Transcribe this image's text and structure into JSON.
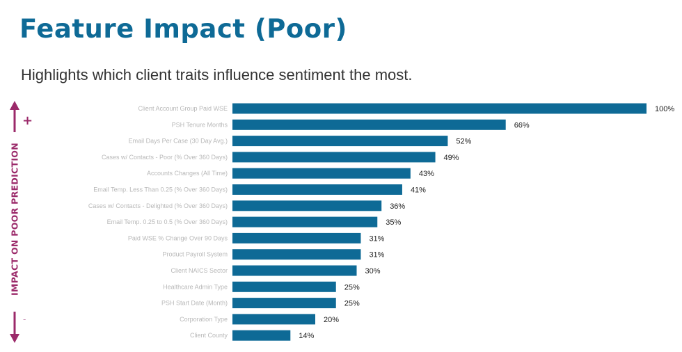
{
  "header": {
    "title": "Feature Impact (Poor)",
    "subtitle": "Highlights which client traits influence sentiment the most."
  },
  "axis_indicator": {
    "label": "IMPACT ON POOR PREDICTION",
    "plus": "+",
    "minus": "-",
    "color": "#9b2a6a"
  },
  "colors": {
    "bar": "#0e6a96",
    "title": "#0e6a96"
  },
  "chart_data": {
    "type": "bar",
    "orientation": "horizontal",
    "categories": [
      "Client Account Group Paid WSE",
      "PSH Tenure Months",
      "Email Days Per Case (30 Day Avg.)",
      "Cases w/ Contacts - Poor (% Over 360 Days)",
      "Accounts Changes (All Time)",
      "Email Temp. Less Than 0.25 (% Over 360 Days)",
      "Cases w/ Contacts - Delighted (% Over 360 Days)",
      "Email Temp. 0.25 to 0.5 (% Over 360 Days)",
      "Paid WSE % Change Over 90 Days",
      "Product Payroll System",
      "Client NAICS Sector",
      "Healthcare Admin Type",
      "PSH Start Date (Month)",
      "Corporation Type",
      "Client County"
    ],
    "values": [
      100,
      66,
      52,
      49,
      43,
      41,
      36,
      35,
      31,
      31,
      30,
      25,
      25,
      20,
      14
    ],
    "value_labels": [
      "100%",
      "66%",
      "52%",
      "49%",
      "43%",
      "41%",
      "36%",
      "35%",
      "31%",
      "31%",
      "30%",
      "25%",
      "25%",
      "20%",
      "14%"
    ],
    "xlim": [
      0,
      100
    ],
    "grid": false,
    "category_labels_blurred": true
  }
}
